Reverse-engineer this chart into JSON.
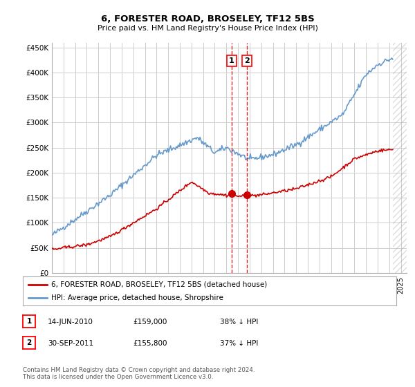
{
  "title": "6, FORESTER ROAD, BROSELEY, TF12 5BS",
  "subtitle": "Price paid vs. HM Land Registry's House Price Index (HPI)",
  "ylabel_ticks": [
    "£0",
    "£50K",
    "£100K",
    "£150K",
    "£200K",
    "£250K",
    "£300K",
    "£350K",
    "£400K",
    "£450K"
  ],
  "ytick_vals": [
    0,
    50000,
    100000,
    150000,
    200000,
    250000,
    300000,
    350000,
    400000,
    450000
  ],
  "ylim": [
    0,
    460000
  ],
  "xlim_start": 1995.0,
  "xlim_end": 2025.5,
  "sale1_date": 2010.45,
  "sale1_price": 159000,
  "sale1_label": "14-JUN-2010",
  "sale1_hpi": "38% ↓ HPI",
  "sale2_date": 2011.75,
  "sale2_price": 155800,
  "sale2_label": "30-SEP-2011",
  "sale2_hpi": "37% ↓ HPI",
  "legend_line1": "6, FORESTER ROAD, BROSELEY, TF12 5BS (detached house)",
  "legend_line2": "HPI: Average price, detached house, Shropshire",
  "footnote": "Contains HM Land Registry data © Crown copyright and database right 2024.\nThis data is licensed under the Open Government Licence v3.0.",
  "property_color": "#cc0000",
  "hpi_color": "#6699cc",
  "bg_color": "#ffffff",
  "grid_color": "#cccccc"
}
